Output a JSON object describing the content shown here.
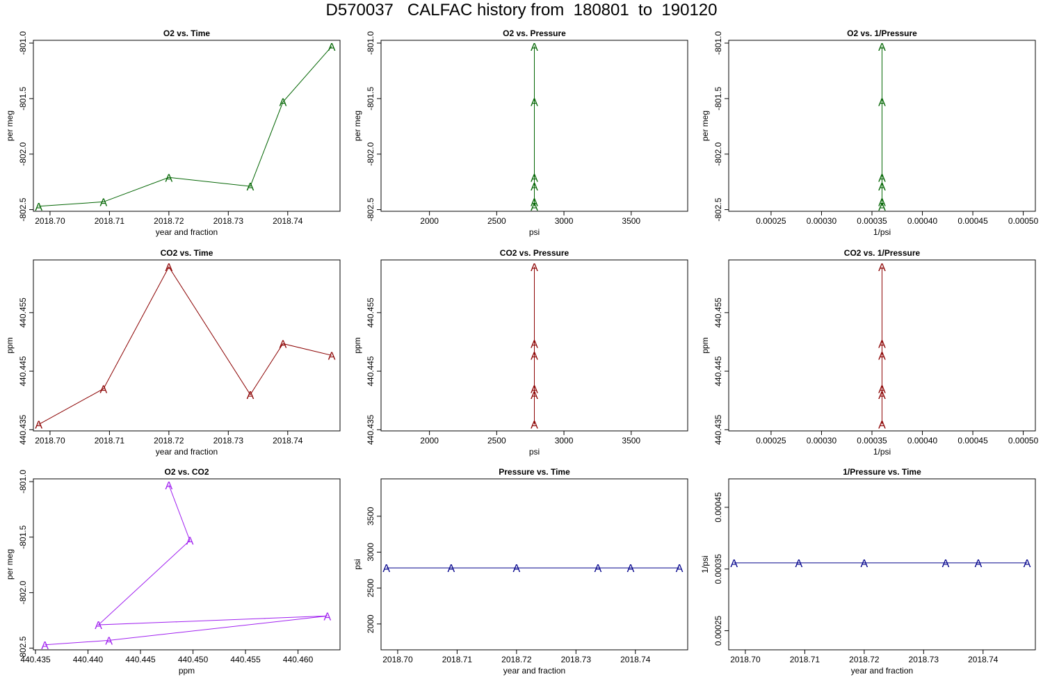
{
  "page": {
    "title": "D570037   CALFAC history from  180801  to  190120"
  },
  "chart_data": [
    {
      "type": "line",
      "title": "O2 vs. Time",
      "xlabel": "year and fraction",
      "ylabel": "per meg",
      "marker": "A",
      "color": "#006400",
      "xlim": [
        2018.6972,
        2018.7488
      ],
      "ylim": [
        -802.515,
        -800.975
      ],
      "xticks": [
        2018.7,
        2018.71,
        2018.72,
        2018.73,
        2018.74
      ],
      "xticklabels": [
        "2018.70",
        "2018.71",
        "2018.72",
        "2018.73",
        "2018.74"
      ],
      "yticks": [
        -801.0,
        -801.5,
        -802.0,
        -802.5
      ],
      "yticklabels": [
        "-801.0",
        "-801.5",
        "-802.0",
        "-802.5"
      ],
      "ytick_rotated": true,
      "x": [
        2018.6981,
        2018.709,
        2018.72,
        2018.7337,
        2018.7392,
        2018.7474
      ],
      "y": [
        -802.47,
        -802.43,
        -802.21,
        -802.29,
        -801.53,
        -801.03
      ]
    },
    {
      "type": "line",
      "title": "O2 vs. Pressure",
      "xlabel": "psi",
      "ylabel": "per meg",
      "marker": "A",
      "color": "#006400",
      "xlim": [
        1640,
        3920
      ],
      "ylim": [
        -802.515,
        -800.975
      ],
      "xticks": [
        2000,
        2500,
        3000,
        3500
      ],
      "xticklabels": [
        "2000",
        "2500",
        "3000",
        "3500"
      ],
      "yticks": [
        -801.0,
        -801.5,
        -802.0,
        -802.5
      ],
      "yticklabels": [
        "-801.0",
        "-801.5",
        "-802.0",
        "-802.5"
      ],
      "ytick_rotated": true,
      "x": [
        2780,
        2780,
        2780,
        2780,
        2780,
        2780
      ],
      "y": [
        -802.47,
        -802.43,
        -802.21,
        -802.29,
        -801.53,
        -801.03
      ]
    },
    {
      "type": "line",
      "title": "O2 vs. 1/Pressure",
      "xlabel": "1/psi",
      "ylabel": "per meg",
      "marker": "A",
      "color": "#006400",
      "xlim": [
        0.000208,
        0.000512
      ],
      "ylim": [
        -802.515,
        -800.975
      ],
      "xticks": [
        0.00025,
        0.0003,
        0.00035,
        0.0004,
        0.00045,
        0.0005
      ],
      "xticklabels": [
        "0.00025",
        "0.00030",
        "0.00035",
        "0.00040",
        "0.00045",
        "0.00050"
      ],
      "yticks": [
        -801.0,
        -801.5,
        -802.0,
        -802.5
      ],
      "yticklabels": [
        "-801.0",
        "-801.5",
        "-802.0",
        "-802.5"
      ],
      "ytick_rotated": true,
      "x": [
        0.00036,
        0.00036,
        0.00036,
        0.00036,
        0.00036,
        0.00036
      ],
      "y": [
        -802.47,
        -802.43,
        -802.21,
        -802.29,
        -801.53,
        -801.03
      ]
    },
    {
      "type": "line",
      "title": "CO2 vs. Time",
      "xlabel": "year and fraction",
      "ylabel": "ppm",
      "marker": "A",
      "color": "#8b0000",
      "xlim": [
        2018.6972,
        2018.7488
      ],
      "ylim": [
        440.4348,
        440.464
      ],
      "xticks": [
        2018.7,
        2018.71,
        2018.72,
        2018.73,
        2018.74
      ],
      "xticklabels": [
        "2018.70",
        "2018.71",
        "2018.72",
        "2018.73",
        "2018.74"
      ],
      "yticks": [
        440.435,
        440.445,
        440.455
      ],
      "yticklabels": [
        "440.435",
        "440.445",
        "440.455"
      ],
      "ytick_rotated": true,
      "x": [
        2018.6981,
        2018.709,
        2018.72,
        2018.7337,
        2018.7392,
        2018.7474
      ],
      "y": [
        440.4359,
        440.442,
        440.4628,
        440.441,
        440.4497,
        440.4477
      ]
    },
    {
      "type": "line",
      "title": "CO2 vs. Pressure",
      "xlabel": "psi",
      "ylabel": "ppm",
      "marker": "A",
      "color": "#8b0000",
      "xlim": [
        1640,
        3920
      ],
      "ylim": [
        440.4348,
        440.464
      ],
      "xticks": [
        2000,
        2500,
        3000,
        3500
      ],
      "xticklabels": [
        "2000",
        "2500",
        "3000",
        "3500"
      ],
      "yticks": [
        440.435,
        440.445,
        440.455
      ],
      "yticklabels": [
        "440.435",
        "440.445",
        "440.455"
      ],
      "ytick_rotated": true,
      "x": [
        2780,
        2780,
        2780,
        2780,
        2780,
        2780
      ],
      "y": [
        440.4359,
        440.442,
        440.4628,
        440.441,
        440.4497,
        440.4477
      ]
    },
    {
      "type": "line",
      "title": "CO2 vs. 1/Pressure",
      "xlabel": "1/psi",
      "ylabel": "ppm",
      "marker": "A",
      "color": "#8b0000",
      "xlim": [
        0.000208,
        0.000512
      ],
      "ylim": [
        440.4348,
        440.464
      ],
      "xticks": [
        0.00025,
        0.0003,
        0.00035,
        0.0004,
        0.00045,
        0.0005
      ],
      "xticklabels": [
        "0.00025",
        "0.00030",
        "0.00035",
        "0.00040",
        "0.00045",
        "0.00050"
      ],
      "yticks": [
        440.435,
        440.445,
        440.455
      ],
      "yticklabels": [
        "440.435",
        "440.445",
        "440.455"
      ],
      "ytick_rotated": true,
      "x": [
        0.00036,
        0.00036,
        0.00036,
        0.00036,
        0.00036,
        0.00036
      ],
      "y": [
        440.4359,
        440.442,
        440.4628,
        440.441,
        440.4497,
        440.4477
      ]
    },
    {
      "type": "line",
      "title": "O2 vs. CO2",
      "xlabel": "ppm",
      "ylabel": "per meg",
      "marker": "A",
      "color": "#a020f0",
      "xlim": [
        440.4348,
        440.464
      ],
      "ylim": [
        -802.515,
        -800.975
      ],
      "xticks": [
        440.435,
        440.44,
        440.445,
        440.45,
        440.455,
        440.46
      ],
      "xticklabels": [
        "440.435",
        "440.440",
        "440.445",
        "440.450",
        "440.455",
        "440.460"
      ],
      "yticks": [
        -801.0,
        -801.5,
        -802.0,
        -802.5
      ],
      "yticklabels": [
        "-801.0",
        "-801.5",
        "-802.0",
        "-802.5"
      ],
      "ytick_rotated": true,
      "x": [
        440.4359,
        440.442,
        440.4628,
        440.441,
        440.4497,
        440.4477
      ],
      "y": [
        -802.47,
        -802.43,
        -802.21,
        -802.29,
        -801.53,
        -801.03
      ]
    },
    {
      "type": "line",
      "title": "Pressure vs. Time",
      "xlabel": "year and fraction",
      "ylabel": "psi",
      "marker": "A",
      "color": "#00008b",
      "xlim": [
        2018.6972,
        2018.7488
      ],
      "ylim": [
        1640,
        4020
      ],
      "xticks": [
        2018.7,
        2018.71,
        2018.72,
        2018.73,
        2018.74
      ],
      "xticklabels": [
        "2018.70",
        "2018.71",
        "2018.72",
        "2018.73",
        "2018.74"
      ],
      "yticks": [
        2000,
        2500,
        3000,
        3500
      ],
      "yticklabels": [
        "2000",
        "2500",
        "3000",
        "3500"
      ],
      "ytick_rotated": true,
      "x": [
        2018.6981,
        2018.709,
        2018.72,
        2018.7337,
        2018.7392,
        2018.7474
      ],
      "y": [
        2780,
        2780,
        2780,
        2780,
        2780,
        2780
      ]
    },
    {
      "type": "line",
      "title": "1/Pressure vs. Time",
      "xlabel": "year and fraction",
      "ylabel": "1/psi",
      "marker": "A",
      "color": "#00008b",
      "xlim": [
        2018.6972,
        2018.7488
      ],
      "ylim": [
        0.000219,
        0.0004961
      ],
      "xticks": [
        2018.7,
        2018.71,
        2018.72,
        2018.73,
        2018.74
      ],
      "xticklabels": [
        "2018.70",
        "2018.71",
        "2018.72",
        "2018.73",
        "2018.74"
      ],
      "yticks": [
        0.00025,
        0.00035,
        0.00045
      ],
      "yticklabels": [
        "0.00025",
        "0.00035",
        "0.00045"
      ],
      "ytick_rotated": true,
      "x": [
        2018.6981,
        2018.709,
        2018.72,
        2018.7337,
        2018.7392,
        2018.7474
      ],
      "y": [
        0.00036,
        0.00036,
        0.00036,
        0.00036,
        0.00036,
        0.00036
      ]
    }
  ]
}
